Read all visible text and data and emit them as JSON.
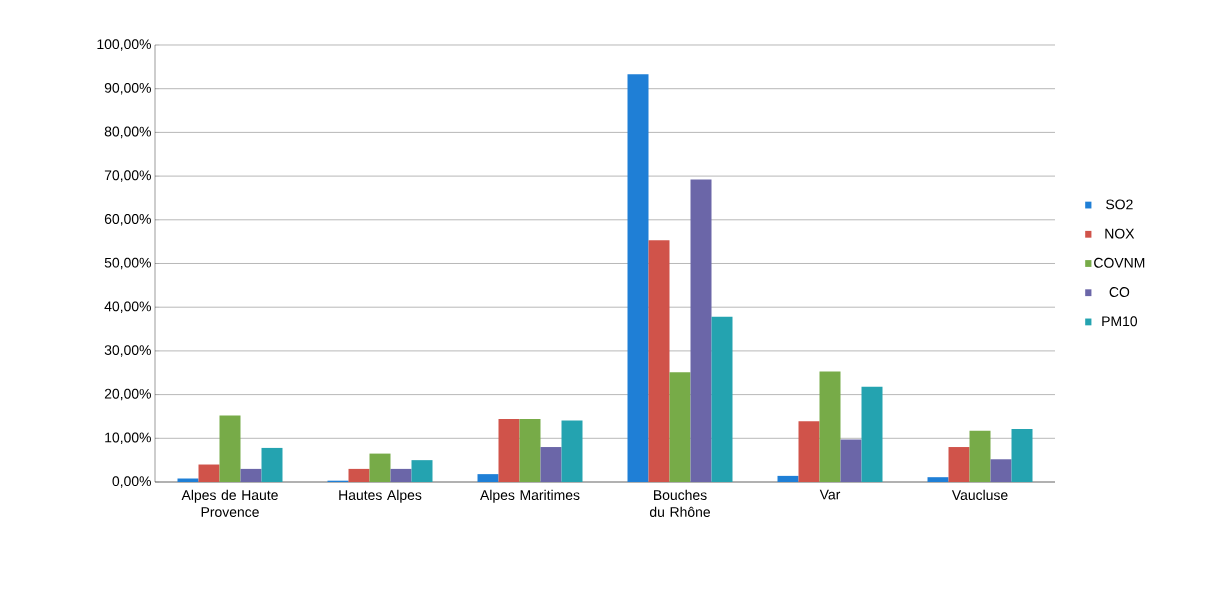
{
  "chart_data": {
    "type": "bar",
    "categories": [
      "Alpes de Haute Provence",
      "Hautes Alpes",
      "Alpes Maritimes",
      "Bouches du Rhône",
      "Var",
      "Vaucluse"
    ],
    "series": [
      {
        "name": "SO2",
        "color": "#1f7fd6",
        "values": [
          0.8,
          0.3,
          1.8,
          93.3,
          1.4,
          1.1
        ]
      },
      {
        "name": "NOX",
        "color": "#d0534a",
        "values": [
          4.0,
          3.0,
          14.4,
          55.3,
          13.9,
          8.0
        ]
      },
      {
        "name": "COVNM",
        "color": "#77ab48",
        "values": [
          15.2,
          6.5,
          14.4,
          25.1,
          25.3,
          11.7
        ]
      },
      {
        "name": "CO",
        "color": "#6b66a8",
        "values": [
          3.0,
          3.0,
          8.0,
          69.2,
          9.7,
          5.2
        ]
      },
      {
        "name": "PM10",
        "color": "#24a3b0",
        "values": [
          7.8,
          5.0,
          14.1,
          37.8,
          21.8,
          12.1
        ]
      }
    ],
    "ylim": [
      0,
      100
    ],
    "yticks": [
      {
        "value": 0,
        "label": "0,00%"
      },
      {
        "value": 10,
        "label": "10,00%"
      },
      {
        "value": 20,
        "label": "20,00%"
      },
      {
        "value": 30,
        "label": "30,00%"
      },
      {
        "value": 40,
        "label": "40,00%"
      },
      {
        "value": 50,
        "label": "50,00%"
      },
      {
        "value": 60,
        "label": "60,00%"
      },
      {
        "value": 70,
        "label": "70,00%"
      },
      {
        "value": 80,
        "label": "80,00%"
      },
      {
        "value": 90,
        "label": "90,00%"
      },
      {
        "value": 100,
        "label": "100,00%"
      }
    ],
    "grid": "y",
    "legend": "right"
  }
}
